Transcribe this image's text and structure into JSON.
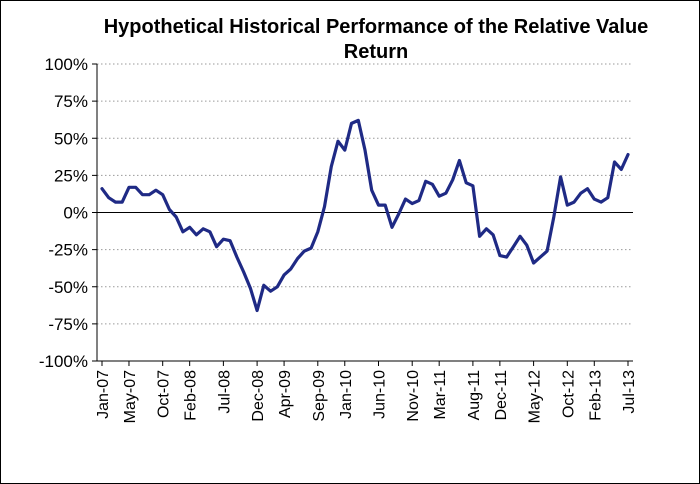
{
  "chart_data": {
    "type": "line",
    "title": "Hypothetical Historical Performance of the Relative Value Return",
    "xlabel": "",
    "ylabel": "",
    "ylim": [
      -100,
      100
    ],
    "yticks": [
      "100%",
      "75%",
      "50%",
      "25%",
      "0%",
      "-25%",
      "-50%",
      "-75%",
      "-100%"
    ],
    "ytick_values": [
      100,
      75,
      50,
      25,
      0,
      -25,
      -50,
      -75,
      -100
    ],
    "xtick_labels": [
      "Jan-07",
      "May-07",
      "Oct-07",
      "Feb-08",
      "Jul-08",
      "Dec-08",
      "Apr-09",
      "Sep-09",
      "Jan-10",
      "Jun-10",
      "Nov-10",
      "Mar-11",
      "Aug-11",
      "Dec-11",
      "May-12",
      "Oct-12",
      "Feb-13",
      "Jul-13"
    ],
    "xtick_index": [
      0,
      4,
      9,
      13,
      18,
      23,
      27,
      32,
      36,
      41,
      46,
      50,
      55,
      59,
      64,
      69,
      73,
      78
    ],
    "grid": true,
    "line_color": "#1f2a85",
    "x_start": "Jan-07",
    "x_end": "Jul-13",
    "series": [
      {
        "values": [
          16,
          10,
          7,
          7,
          17,
          17,
          12,
          12,
          15,
          12,
          2,
          -3,
          -13,
          -10,
          -15,
          -11,
          -13,
          -23,
          -18,
          -19,
          -30,
          -40,
          -51,
          -66,
          -49,
          -53,
          -50,
          -42,
          -38,
          -31,
          -26,
          -24,
          -13,
          4,
          31,
          48,
          42,
          60,
          62,
          42,
          15,
          5,
          5,
          -10,
          -1,
          9,
          6,
          8,
          21,
          19,
          11,
          13,
          22,
          35,
          20,
          18,
          -16,
          -11,
          -15,
          -29,
          -30,
          -23,
          -16,
          -22,
          -34,
          -30,
          -26,
          -3,
          24,
          5,
          7,
          13,
          16,
          9,
          7,
          10,
          34,
          29,
          39
        ]
      }
    ]
  }
}
